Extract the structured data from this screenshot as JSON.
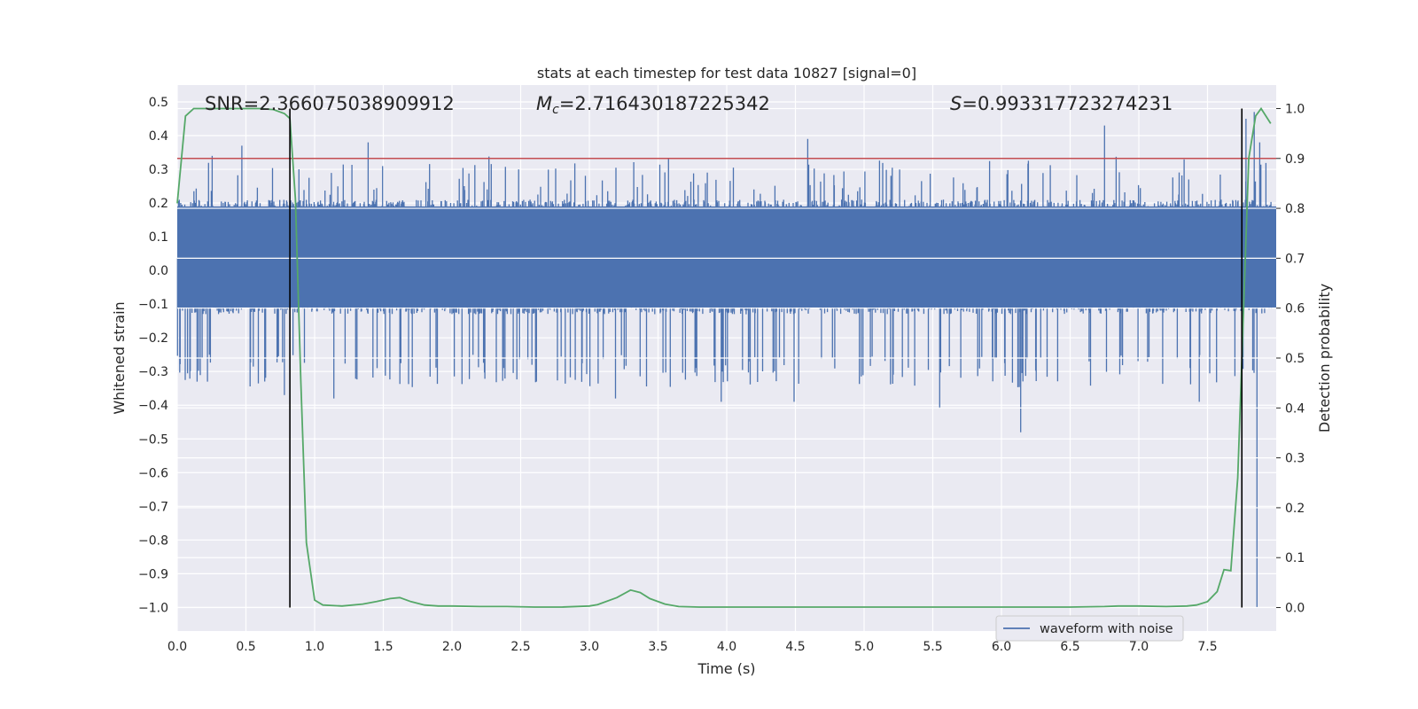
{
  "chart_data": {
    "type": "line",
    "title": "stats at each timestep for test data 10827 [signal=0]",
    "xlabel": "Time (s)",
    "ylabel": "Whitened strain",
    "y2label": "Detection probability",
    "xlim": [
      0,
      8
    ],
    "ylim": [
      -1.07,
      0.55
    ],
    "y2lim": [
      -0.047,
      1.047
    ],
    "xticks": [
      "0.0",
      "0.5",
      "1.0",
      "1.5",
      "2.0",
      "2.5",
      "3.0",
      "3.5",
      "4.0",
      "4.5",
      "5.0",
      "5.5",
      "6.0",
      "6.5",
      "7.0",
      "7.5"
    ],
    "yticks": [
      "0.5",
      "0.4",
      "0.3",
      "0.2",
      "0.1",
      "0.0",
      "−0.1",
      "−0.2",
      "−0.3",
      "−0.4",
      "−0.5",
      "−0.6",
      "−0.7",
      "−0.8",
      "−0.9",
      "−1.0"
    ],
    "y2ticks": [
      "1.0",
      "0.9",
      "0.8",
      "0.7",
      "0.6",
      "0.5",
      "0.4",
      "0.3",
      "0.2",
      "0.1",
      "0.0"
    ],
    "annotations": {
      "snr_label": "SNR",
      "snr_value": "=2.366075038909912",
      "mc_label": "M",
      "mc_sub": "c",
      "mc_value": "=2.716430187225342",
      "s_label": "S",
      "s_value": "=0.993317723274231"
    },
    "legend": {
      "label": "waveform with noise",
      "position": "lower-right"
    },
    "threshold": {
      "value": 0.9,
      "axis": "right",
      "color": "#c44e52"
    },
    "vlines": {
      "x": [
        0.82,
        7.75
      ],
      "color": "#000000"
    },
    "waveform": {
      "name": "waveform with noise",
      "color": "#4c72b0",
      "samples": 2400,
      "core_range": [
        -0.11,
        0.19
      ],
      "peaks": [
        {
          "t": 0.47,
          "v": 0.37
        },
        {
          "t": 1.39,
          "v": 0.38
        },
        {
          "t": 4.59,
          "v": 0.39
        },
        {
          "t": 6.75,
          "v": 0.43
        },
        {
          "t": 7.84,
          "v": 0.47
        },
        {
          "t": 7.78,
          "v": 0.45
        },
        {
          "t": 7.88,
          "v": 0.38
        },
        {
          "t": 7.86,
          "v": -1.0
        },
        {
          "t": 6.14,
          "v": -0.48
        },
        {
          "t": 5.55,
          "v": -0.41
        },
        {
          "t": 1.14,
          "v": -0.38
        },
        {
          "t": 4.49,
          "v": -0.39
        },
        {
          "t": 3.19,
          "v": -0.38
        },
        {
          "t": 3.96,
          "v": -0.39
        },
        {
          "t": 0.78,
          "v": -0.37
        },
        {
          "t": 7.44,
          "v": -0.39
        },
        {
          "t": 0.22,
          "v": -0.33
        }
      ]
    },
    "probability": {
      "name": "detection probability",
      "color": "#55a868",
      "x": [
        0.0,
        0.06,
        0.12,
        0.2,
        0.3,
        0.4,
        0.5,
        0.6,
        0.7,
        0.78,
        0.82,
        0.86,
        0.9,
        0.94,
        1.0,
        1.06,
        1.2,
        1.35,
        1.45,
        1.55,
        1.62,
        1.7,
        1.8,
        1.9,
        2.0,
        2.2,
        2.4,
        2.6,
        2.8,
        3.0,
        3.06,
        3.2,
        3.3,
        3.37,
        3.44,
        3.55,
        3.65,
        3.8,
        4.0,
        4.5,
        5.0,
        5.5,
        6.0,
        6.5,
        6.75,
        6.85,
        7.0,
        7.2,
        7.35,
        7.42,
        7.5,
        7.57,
        7.62,
        7.67,
        7.72,
        7.75,
        7.8,
        7.85,
        7.89,
        7.96
      ],
      "y": [
        0.81,
        0.985,
        1.0,
        1.0,
        1.0,
        1.0,
        1.0,
        1.0,
        0.998,
        0.99,
        0.98,
        0.82,
        0.45,
        0.13,
        0.015,
        0.005,
        0.003,
        0.007,
        0.012,
        0.018,
        0.02,
        0.012,
        0.005,
        0.003,
        0.003,
        0.002,
        0.002,
        0.001,
        0.001,
        0.003,
        0.006,
        0.02,
        0.035,
        0.03,
        0.018,
        0.007,
        0.002,
        0.001,
        0.001,
        0.001,
        0.001,
        0.001,
        0.001,
        0.001,
        0.002,
        0.003,
        0.003,
        0.002,
        0.003,
        0.005,
        0.012,
        0.032,
        0.076,
        0.074,
        0.26,
        0.5,
        0.9,
        0.985,
        1.0,
        0.97
      ]
    }
  }
}
